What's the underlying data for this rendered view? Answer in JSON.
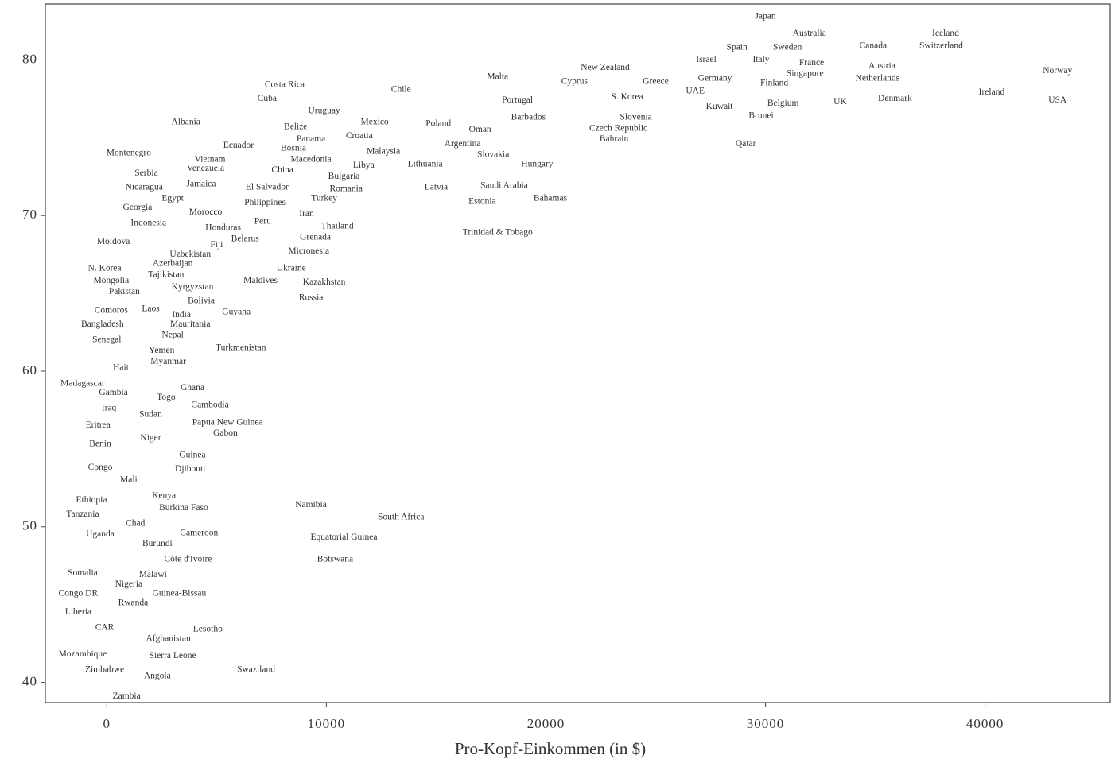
{
  "chart_data": {
    "type": "scatter",
    "xlabel": "Pro-Kopf-Einkommen (in $)",
    "xlim": [
      -2800,
      45700
    ],
    "ylim": [
      38.7,
      83.6
    ],
    "xticks": [
      0,
      10000,
      20000,
      30000,
      40000
    ],
    "yticks": [
      40,
      50,
      60,
      70,
      80
    ],
    "color": "#333333",
    "categories": [
      "Japan",
      "Australia",
      "Iceland",
      "Spain",
      "Sweden",
      "Canada",
      "Switzerland",
      "Israel",
      "Italy",
      "France",
      "Austria",
      "Norway",
      "New Zealand",
      "Singapore",
      "Malta",
      "Cyprus",
      "Greece",
      "Germany",
      "Finland",
      "Netherlands",
      "Costa Rica",
      "Chile",
      "UAE",
      "Cuba",
      "S. Korea",
      "Ireland",
      "Portugal",
      "Kuwait",
      "Belgium",
      "UK",
      "Denmark",
      "USA",
      "Uruguay",
      "Barbados",
      "Slovenia",
      "Brunei",
      "Albania",
      "Mexico",
      "Poland",
      "Belize",
      "Oman",
      "Czech Republic",
      "Croatia",
      "Panama",
      "Bahrain",
      "Ecuador",
      "Argentina",
      "Qatar",
      "Bosnia",
      "Malaysia",
      "Montenegro",
      "Slovakia",
      "Vietnam",
      "Macedonia",
      "Libya",
      "Lithuania",
      "Hungary",
      "Venezuela",
      "China",
      "Serbia",
      "Bulgaria",
      "Jamaica",
      "Nicaragua",
      "El Salvador",
      "Romania",
      "Latvia",
      "Saudi Arabia",
      "Egypt",
      "Turkey",
      "Bahamas",
      "Estonia",
      "Philippines",
      "Georgia",
      "Morocco",
      "Iran",
      "Peru",
      "Indonesia",
      "Honduras",
      "Thailand",
      "Trinidad & Tobago",
      "Belarus",
      "Grenada",
      "Moldova",
      "Fiji",
      "Uzbekistan",
      "Micronesia",
      "Azerbaijan",
      "N. Korea",
      "Ukraine",
      "Tajikistan",
      "Mongolia",
      "Maldives",
      "Kazakhstan",
      "Kyrgyzstan",
      "Pakistan",
      "Russia",
      "Bolivia",
      "Comoros",
      "Laos",
      "Guyana",
      "India",
      "Mauritania",
      "Bangladesh",
      "Nepal",
      "Senegal",
      "Yemen",
      "Turkmenistan",
      "Myanmar",
      "Haiti",
      "Madagascar",
      "Ghana",
      "Gambia",
      "Togo",
      "Cambodia",
      "Iraq",
      "Sudan",
      "Papua New Guinea",
      "Eritrea",
      "Gabon",
      "Niger",
      "Benin",
      "Guinea",
      "Congo",
      "Djibouti",
      "Mali",
      "Kenya",
      "Ethiopia",
      "Namibia",
      "Burkina Faso",
      "Tanzania",
      "South Africa",
      "Chad",
      "Uganda",
      "Cameroon",
      "Equatorial Guinea",
      "Burundi",
      "Côte d'Ivoire",
      "Botswana",
      "Somalia",
      "Malawi",
      "Nigeria",
      "Congo DR",
      "Guinea-Bissau",
      "Rwanda",
      "Liberia",
      "CAR",
      "Lesotho",
      "Afghanistan",
      "Mozambique",
      "Sierra Leone",
      "Zimbabwe",
      "Swaziland",
      "Angola",
      "Zambia"
    ],
    "x": [
      30000,
      32000,
      38200,
      28700,
      31000,
      34900,
      38000,
      27300,
      29800,
      32100,
      35300,
      43300,
      22700,
      31800,
      17800,
      21300,
      25000,
      27700,
      30400,
      35100,
      8100,
      13400,
      26800,
      7300,
      23700,
      40300,
      18700,
      27900,
      30800,
      33400,
      35900,
      43300,
      9900,
      19200,
      24100,
      29800,
      3600,
      12200,
      15100,
      8600,
      17000,
      23300,
      11500,
      9300,
      23100,
      6000,
      16200,
      29100,
      8500,
      12600,
      1000,
      17600,
      4700,
      9300,
      11700,
      14500,
      19600,
      4500,
      8000,
      1800,
      10800,
      4300,
      1700,
      7300,
      10900,
      15000,
      18100,
      3000,
      9900,
      20200,
      17100,
      7200,
      1400,
      4500,
      9100,
      7100,
      1900,
      5300,
      10500,
      17800,
      6300,
      9500,
      300,
      5000,
      3800,
      9200,
      3000,
      -100,
      8400,
      2700,
      200,
      7000,
      9900,
      3900,
      800,
      9300,
      4300,
      200,
      2000,
      5900,
      3400,
      3800,
      -200,
      3000,
      0,
      2500,
      6100,
      2800,
      700,
      -1100,
      3900,
      300,
      2700,
      4700,
      100,
      2000,
      5500,
      -400,
      5400,
      2000,
      -300,
      3900,
      -300,
      3800,
      1000,
      2600,
      -700,
      9300,
      3500,
      -1100,
      13400,
      1300,
      -300,
      4200,
      10800,
      2300,
      3700,
      10400,
      -1100,
      2100,
      1000,
      -1300,
      3300,
      1200,
      -1300,
      -100,
      4600,
      2800,
      -1100,
      3000,
      -100,
      6800,
      2300,
      900
    ],
    "values": [
      82.8,
      81.7,
      81.7,
      80.8,
      80.8,
      80.9,
      80.9,
      80.0,
      80.0,
      79.8,
      79.6,
      79.3,
      79.5,
      79.1,
      78.9,
      78.6,
      78.6,
      78.8,
      78.5,
      78.8,
      78.4,
      78.1,
      78.0,
      77.5,
      77.6,
      77.9,
      77.4,
      77.0,
      77.2,
      77.3,
      77.5,
      77.4,
      76.7,
      76.3,
      76.3,
      76.4,
      76.0,
      76.0,
      75.9,
      75.7,
      75.5,
      75.6,
      75.1,
      74.9,
      74.9,
      74.5,
      74.6,
      74.6,
      74.3,
      74.1,
      74.0,
      73.9,
      73.6,
      73.6,
      73.2,
      73.3,
      73.3,
      73.0,
      72.9,
      72.7,
      72.5,
      72.0,
      71.8,
      71.8,
      71.7,
      71.8,
      71.9,
      71.1,
      71.1,
      71.1,
      70.9,
      70.8,
      70.5,
      70.2,
      70.1,
      69.6,
      69.5,
      69.2,
      69.3,
      68.9,
      68.5,
      68.6,
      68.3,
      68.1,
      67.5,
      67.7,
      66.9,
      66.6,
      66.6,
      66.2,
      65.8,
      65.8,
      65.7,
      65.4,
      65.1,
      64.7,
      64.5,
      63.9,
      64.0,
      63.8,
      63.6,
      63.0,
      63.0,
      62.3,
      62.0,
      61.3,
      61.5,
      60.6,
      60.2,
      59.2,
      58.9,
      58.6,
      58.3,
      57.8,
      57.6,
      57.2,
      56.7,
      56.5,
      56.0,
      55.7,
      55.3,
      54.6,
      53.8,
      53.7,
      53.0,
      52.0,
      51.7,
      51.4,
      51.2,
      50.8,
      50.6,
      50.2,
      49.5,
      49.6,
      49.3,
      48.9,
      47.9,
      47.9,
      47.0,
      46.9,
      46.3,
      45.7,
      45.7,
      45.1,
      44.5,
      43.5,
      43.4,
      42.8,
      41.8,
      41.7,
      40.8,
      40.8,
      40.4,
      39.1
    ]
  }
}
